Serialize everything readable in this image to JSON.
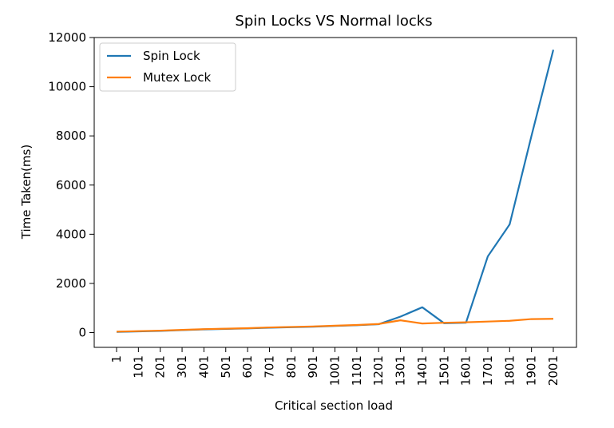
{
  "chart_data": {
    "type": "line",
    "title": "Spin Locks VS Normal locks",
    "xlabel": "Critical section load",
    "ylabel": "Time Taken(ms)",
    "categories": [
      "1",
      "101",
      "201",
      "301",
      "401",
      "501",
      "601",
      "701",
      "801",
      "901",
      "1001",
      "1101",
      "1201",
      "1301",
      "1401",
      "1501",
      "1601",
      "1701",
      "1801",
      "1901",
      "2001"
    ],
    "ylim": [
      -600,
      12000
    ],
    "yticks": [
      0,
      2000,
      4000,
      6000,
      8000,
      10000,
      12000
    ],
    "ytick_labels": [
      "0",
      "2000",
      "4000",
      "6000",
      "8000",
      "10000",
      "12000"
    ],
    "legend_position": "top-left",
    "grid": false,
    "series": [
      {
        "name": "Spin Lock",
        "color": "#1f77b4",
        "values": [
          30,
          50,
          70,
          100,
          130,
          150,
          170,
          200,
          220,
          240,
          270,
          300,
          340,
          650,
          1030,
          380,
          400,
          3100,
          4400,
          8000,
          11500
        ]
      },
      {
        "name": "Mutex Lock",
        "color": "#ff7f0e",
        "values": [
          40,
          60,
          80,
          110,
          140,
          160,
          180,
          210,
          230,
          250,
          280,
          310,
          350,
          500,
          370,
          400,
          420,
          450,
          480,
          550,
          560
        ]
      }
    ]
  }
}
